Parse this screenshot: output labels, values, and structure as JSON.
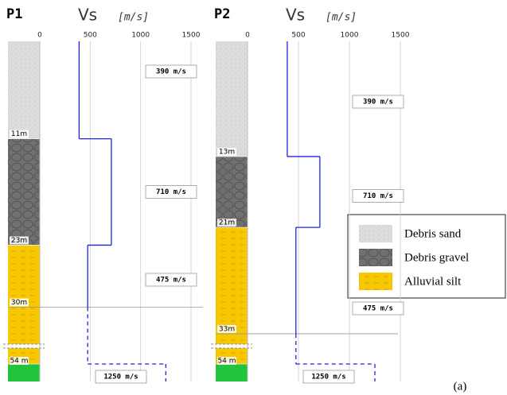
{
  "chart_data": [
    {
      "type": "step",
      "title": "P1",
      "x_label": "Vs",
      "x_unit": "[m/s]",
      "xlim": [
        0,
        1500
      ],
      "xticks": [
        0,
        500,
        1000,
        1500
      ],
      "interface_depths": [
        11,
        23,
        30,
        54
      ],
      "depth_labels": [
        "11m",
        "23m",
        "30m",
        "54 m"
      ],
      "values": [
        390,
        710,
        475,
        1250
      ],
      "value_labels": [
        "390 m/s",
        "710 m/s",
        "475 m/s",
        "1250 m/s"
      ],
      "color": "#2222dd"
    },
    {
      "type": "step",
      "title": "P2",
      "x_label": "Vs",
      "x_unit": "[m/s]",
      "xlim": [
        0,
        1500
      ],
      "xticks": [
        0,
        500,
        1000,
        1500
      ],
      "interface_depths": [
        13,
        21,
        33,
        54
      ],
      "depth_labels": [
        "13m",
        "21m",
        "33m",
        "54 m"
      ],
      "values": [
        390,
        710,
        475,
        1250
      ],
      "value_labels": [
        "390 m/s",
        "710 m/s",
        "475 m/s",
        "1250 m/s"
      ],
      "color": "#2222dd"
    }
  ],
  "legend": [
    {
      "name": "Debris sand",
      "color": "#dcdcdc"
    },
    {
      "name": "Debris gravel",
      "color": "#707070"
    },
    {
      "name": "Alluvial silt",
      "color": "#f7c800"
    }
  ],
  "bedrock_color": "#22c43c",
  "caption": "(a)"
}
